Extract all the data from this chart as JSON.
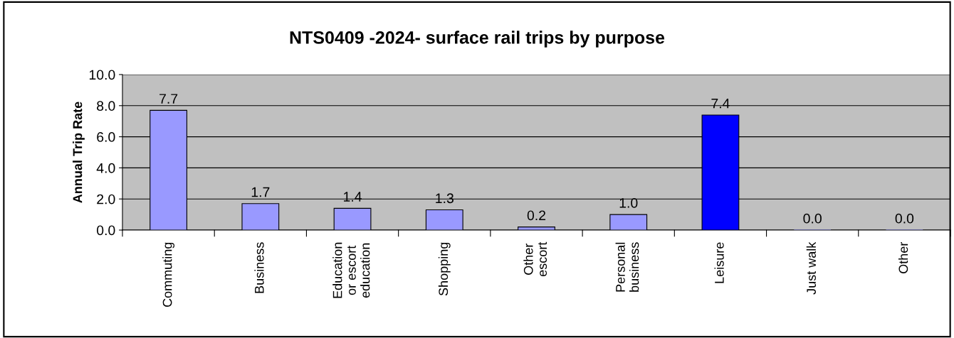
{
  "chart_data": {
    "type": "bar",
    "title": "NTS0409 -2024- surface rail trips by purpose",
    "ylabel": "Annual Trip Rate",
    "categories": [
      "Commuting",
      "Business",
      "Education\nor escort\neducation",
      "Shopping",
      "Other\nescort",
      "Personal\nbusiness",
      "Leisure",
      "Just walk",
      "Other"
    ],
    "values": [
      7.7,
      1.7,
      1.4,
      1.3,
      0.2,
      1.0,
      7.4,
      0.0,
      0.0
    ],
    "value_labels": [
      "7.7",
      "1.7",
      "1.4",
      "1.3",
      "0.2",
      "1.0",
      "7.4",
      "0.0",
      "0.0"
    ],
    "colors": [
      "#9999ff",
      "#9999ff",
      "#9999ff",
      "#9999ff",
      "#9999ff",
      "#9999ff",
      "#0000ff",
      "#9999ff",
      "#9999ff"
    ],
    "ylim": [
      0,
      10
    ],
    "yticks": [
      {
        "value": 0,
        "label": "0.0"
      },
      {
        "value": 2,
        "label": "2.0"
      },
      {
        "value": 4,
        "label": "4.0"
      },
      {
        "value": 6,
        "label": "6.0"
      },
      {
        "value": 8,
        "label": "8.0"
      },
      {
        "value": 10,
        "label": "10.0"
      }
    ],
    "grid": "y",
    "legend": false
  }
}
